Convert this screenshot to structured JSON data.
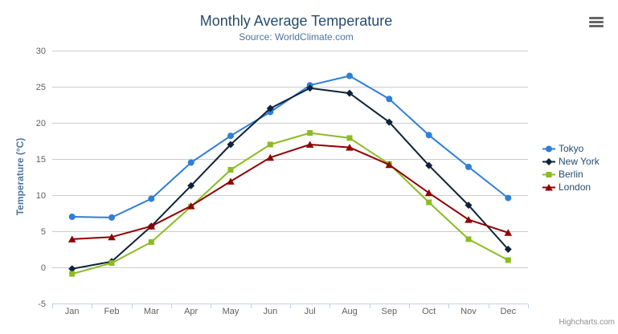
{
  "chart": {
    "credits": "Highcharts.com",
    "menu_icon": "hamburger-icon"
  },
  "colors": {
    "background": "#ffffff",
    "title": "#274b6d",
    "subtitle": "#4d759e",
    "axis_title": "#4d759e",
    "tick_label": "#606060",
    "grid": "#cccccc",
    "axis_line": "#c0d0e0",
    "legend_text": "#274b6d",
    "credits": "#909090",
    "menu_icon": "#666666"
  },
  "chart_data": {
    "type": "line",
    "title": "Monthly Average Temperature",
    "subtitle": "Source: WorldClimate.com",
    "xlabel": "",
    "ylabel": "Temperature (°C)",
    "ylim": [
      -5,
      30
    ],
    "yticks": [
      -5,
      0,
      5,
      10,
      15,
      20,
      25,
      30
    ],
    "grid": true,
    "legend_position": "right",
    "categories": [
      "Jan",
      "Feb",
      "Mar",
      "Apr",
      "May",
      "Jun",
      "Jul",
      "Aug",
      "Sep",
      "Oct",
      "Nov",
      "Dec"
    ],
    "series": [
      {
        "name": "Tokyo",
        "color": "#2f7ed8",
        "marker": "circle",
        "values": [
          7.0,
          6.9,
          9.5,
          14.5,
          18.2,
          21.5,
          25.2,
          26.5,
          23.3,
          18.3,
          13.9,
          9.6
        ]
      },
      {
        "name": "New York",
        "color": "#0d233a",
        "marker": "diamond",
        "values": [
          -0.2,
          0.8,
          5.7,
          11.3,
          17.0,
          22.0,
          24.8,
          24.1,
          20.1,
          14.1,
          8.6,
          2.5
        ]
      },
      {
        "name": "Berlin",
        "color": "#8bbc21",
        "marker": "square",
        "values": [
          -0.9,
          0.6,
          3.5,
          8.4,
          13.5,
          17.0,
          18.6,
          17.9,
          14.3,
          9.0,
          3.9,
          1.0
        ]
      },
      {
        "name": "London",
        "color": "#910000",
        "marker": "triangle",
        "values": [
          3.9,
          4.2,
          5.7,
          8.5,
          11.9,
          15.2,
          17.0,
          16.6,
          14.2,
          10.3,
          6.6,
          4.8
        ]
      }
    ]
  }
}
